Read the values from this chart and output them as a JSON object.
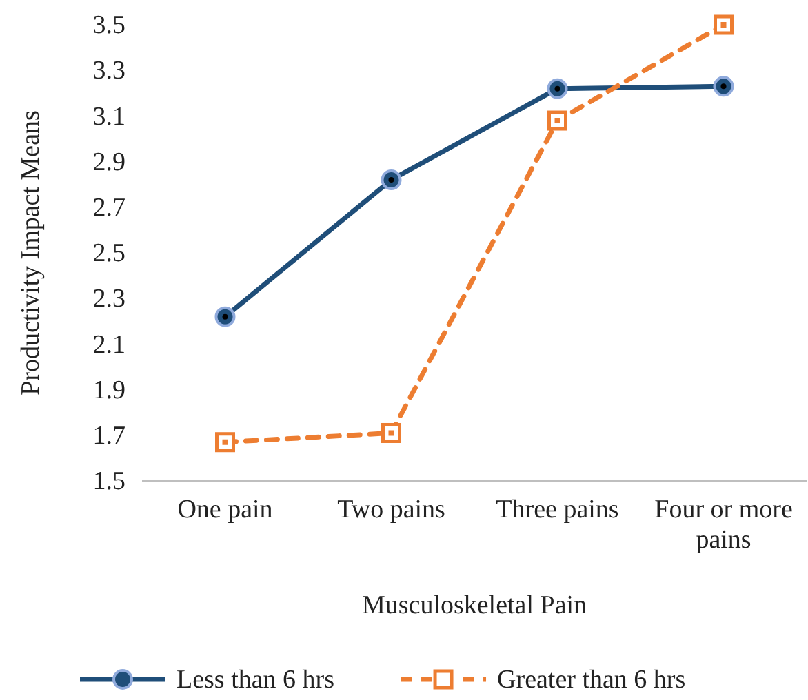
{
  "chart_data": {
    "type": "line",
    "xlabel": "Musculoskeletal Pain",
    "ylabel": "Productivity Impact Means",
    "categories": [
      "One pain",
      "Two pains",
      "Three pains",
      "Four or more pains"
    ],
    "series": [
      {
        "name": "Less than 6 hrs",
        "color": "#1f4e79",
        "values": [
          2.22,
          2.82,
          3.22,
          3.23
        ],
        "marker": "circle",
        "line_style": "solid"
      },
      {
        "name": "Greater than 6 hrs",
        "color": "#ed7d31",
        "values": [
          1.67,
          1.71,
          3.08,
          3.5
        ],
        "marker": "square",
        "line_style": "dashed"
      }
    ],
    "ylim": [
      1.5,
      3.5
    ],
    "yticks": [
      1.5,
      1.7,
      1.9,
      2.1,
      2.3,
      2.5,
      2.7,
      2.9,
      3.1,
      3.3,
      3.5
    ],
    "grid": false,
    "legend": "bottom"
  }
}
